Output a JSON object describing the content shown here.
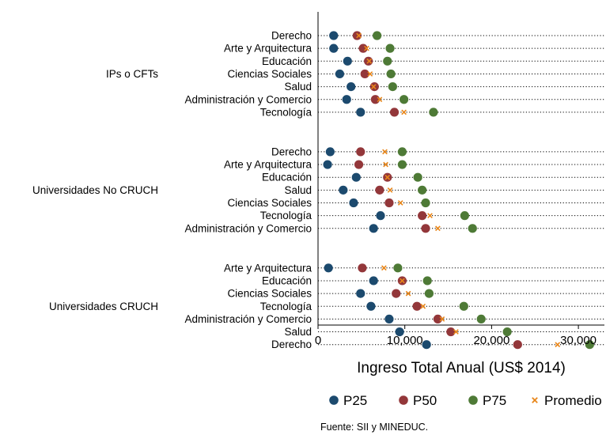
{
  "chart_data": {
    "type": "scatter",
    "orientation": "horizontal-dot-plot",
    "xlabel": "Ingreso Total Anual (US$ 2014)",
    "xlim": [
      0,
      33000
    ],
    "xticks": [
      0,
      10000,
      20000,
      30000
    ],
    "xtick_labels": [
      "0",
      "10,000",
      "20,000",
      "30,000"
    ],
    "source": "Fuente: SII y MINEDUC.",
    "legend_position": "bottom",
    "series": [
      {
        "key": "p25",
        "name": "P25",
        "color": "#1c4a6e",
        "marker": "circle"
      },
      {
        "key": "p50",
        "name": "P50",
        "color": "#93373a",
        "marker": "circle"
      },
      {
        "key": "p75",
        "name": "P75",
        "color": "#4e7a36",
        "marker": "circle"
      },
      {
        "key": "mean",
        "name": "Promedio",
        "color": "#e8861a",
        "marker": "x"
      }
    ],
    "groups": [
      {
        "name": "IPs o CFTs",
        "rows": [
          {
            "label": "Derecho",
            "p25": 1800,
            "p50": 4500,
            "p75": 6800,
            "mean": 4700
          },
          {
            "label": "Arte y Arquitectura",
            "p25": 1800,
            "p50": 5200,
            "p75": 8300,
            "mean": 5600
          },
          {
            "label": "Educación",
            "p25": 3400,
            "p50": 5800,
            "p75": 8000,
            "mean": 5900
          },
          {
            "label": "Ciencias Sociales",
            "p25": 2500,
            "p50": 5400,
            "p75": 8400,
            "mean": 6000
          },
          {
            "label": "Salud",
            "p25": 3800,
            "p50": 6500,
            "p75": 8600,
            "mean": 6400
          },
          {
            "label": "Administración y Comercio",
            "p25": 3300,
            "p50": 6600,
            "p75": 9900,
            "mean": 7100
          },
          {
            "label": "Tecnología",
            "p25": 4900,
            "p50": 8800,
            "p75": 13300,
            "mean": 9900
          }
        ]
      },
      {
        "name": "Universidades No CRUCH",
        "rows": [
          {
            "label": "Derecho",
            "p25": 1400,
            "p50": 4900,
            "p75": 9700,
            "mean": 7700
          },
          {
            "label": "Arte y Arquitectura",
            "p25": 1100,
            "p50": 4700,
            "p75": 9700,
            "mean": 7800
          },
          {
            "label": "Educación",
            "p25": 4400,
            "p50": 8000,
            "p75": 11500,
            "mean": 8000
          },
          {
            "label": "Salud",
            "p25": 2900,
            "p50": 7100,
            "p75": 12000,
            "mean": 8300
          },
          {
            "label": "Ciencias Sociales",
            "p25": 4100,
            "p50": 8200,
            "p75": 12400,
            "mean": 9500
          },
          {
            "label": "Tecnología",
            "p25": 7200,
            "p50": 12000,
            "p75": 16900,
            "mean": 12900
          },
          {
            "label": "Administración y Comercio",
            "p25": 6400,
            "p50": 12400,
            "p75": 17800,
            "mean": 13800
          }
        ]
      },
      {
        "name": "Universidades CRUCH",
        "rows": [
          {
            "label": "Arte y Arquitectura",
            "p25": 1200,
            "p50": 5100,
            "p75": 9200,
            "mean": 7600
          },
          {
            "label": "Educación",
            "p25": 6400,
            "p50": 9700,
            "p75": 12600,
            "mean": 9700
          },
          {
            "label": "Ciencias Sociales",
            "p25": 4900,
            "p50": 9000,
            "p75": 12800,
            "mean": 10400
          },
          {
            "label": "Tecnología",
            "p25": 6100,
            "p50": 11400,
            "p75": 16800,
            "mean": 12100
          },
          {
            "label": "Administración y Comercio",
            "p25": 8200,
            "p50": 13800,
            "p75": 18800,
            "mean": 14300
          },
          {
            "label": "Salud",
            "p25": 9400,
            "p50": 15300,
            "p75": 21800,
            "mean": 15900
          },
          {
            "label": "Derecho",
            "p25": 12500,
            "p50": 23000,
            "p75": 31300,
            "mean": 27600
          }
        ]
      }
    ]
  }
}
